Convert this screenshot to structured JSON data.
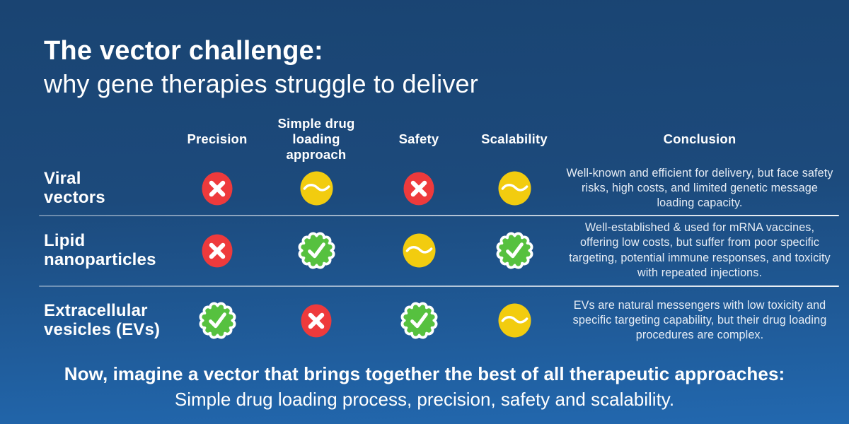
{
  "header": {
    "title": "The vector challenge:",
    "subtitle": "why gene therapies struggle to deliver"
  },
  "table": {
    "columns": [
      "Precision",
      "Simple drug\nloading\napproach",
      "Safety",
      "Scalability"
    ],
    "conclusion_header": "Conclusion",
    "rows": [
      {
        "label": "Viral\nvectors",
        "ratings": [
          "cross",
          "partial",
          "cross",
          "partial"
        ],
        "conclusion": "Well-known and efficient for delivery, but face safety risks, high costs, and limited genetic message loading capacity."
      },
      {
        "label": "Lipid\nnanoparticles",
        "ratings": [
          "cross",
          "check",
          "partial",
          "check"
        ],
        "conclusion": "Well-established & used for mRNA vaccines, offering low costs, but suffer from poor specific targeting, potential immune responses, and toxicity with repeated injections."
      },
      {
        "label": "Extracellular\nvesicles (EVs)",
        "ratings": [
          "check",
          "cross",
          "check",
          "partial"
        ],
        "conclusion": "EVs are natural messengers with low toxicity and specific targeting capability, but their drug loading procedures are complex."
      }
    ]
  },
  "footer": {
    "line1": "Now, imagine a vector that brings together the best of all therapeutic approaches:",
    "line2": "Simple drug loading process, precision, safety and scalability."
  },
  "colors": {
    "background_top": "#1a4472",
    "background_bottom": "#2268af",
    "cross_red": "#ee3a3c",
    "partial_yellow": "#f2cc0f",
    "check_green": "#56c13f",
    "text_white": "#ffffff",
    "conclusion_text": "#e7edf5"
  }
}
